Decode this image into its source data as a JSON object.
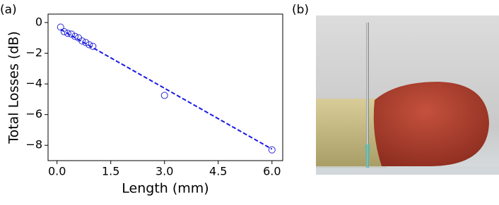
{
  "panel_labels": [
    "(a)",
    "(b)"
  ],
  "chart_data": {
    "type": "scatter",
    "x_label": "Length (mm)",
    "y_label": "Total Losses (dB)",
    "xlim": [
      -0.25,
      6.3
    ],
    "ylim": [
      -9.0,
      0.55
    ],
    "xticks": [
      {
        "value": 0,
        "label": "0.0"
      },
      {
        "value": 1.5,
        "label": "1.5"
      },
      {
        "value": 3,
        "label": "3.0"
      },
      {
        "value": 4.5,
        "label": "4.5"
      },
      {
        "value": 6,
        "label": "6.0"
      }
    ],
    "yticks": [
      0,
      {
        "value": -2,
        "label": "−2"
      },
      {
        "value": -4,
        "label": "−4"
      },
      {
        "value": -6,
        "label": "−6"
      },
      {
        "value": -8,
        "label": "−8"
      }
    ],
    "series": [
      {
        "mode": "markers",
        "marker": "open-circle",
        "color": "#2b2bd4",
        "x": [
          0.1,
          0.2,
          0.3,
          0.4,
          0.5,
          0.6,
          0.7,
          0.8,
          0.9,
          1.0,
          3.0,
          6.0
        ],
        "values": [
          -0.3,
          -0.6,
          -0.7,
          -0.75,
          -0.9,
          -1.0,
          -1.2,
          -1.3,
          -1.45,
          -1.55,
          -4.75,
          -8.3
        ]
      },
      {
        "mode": "line",
        "dash": true,
        "color": "#1a1ae6",
        "x": [
          0.1,
          6.0
        ],
        "values": [
          -0.45,
          -8.25
        ]
      }
    ]
  }
}
